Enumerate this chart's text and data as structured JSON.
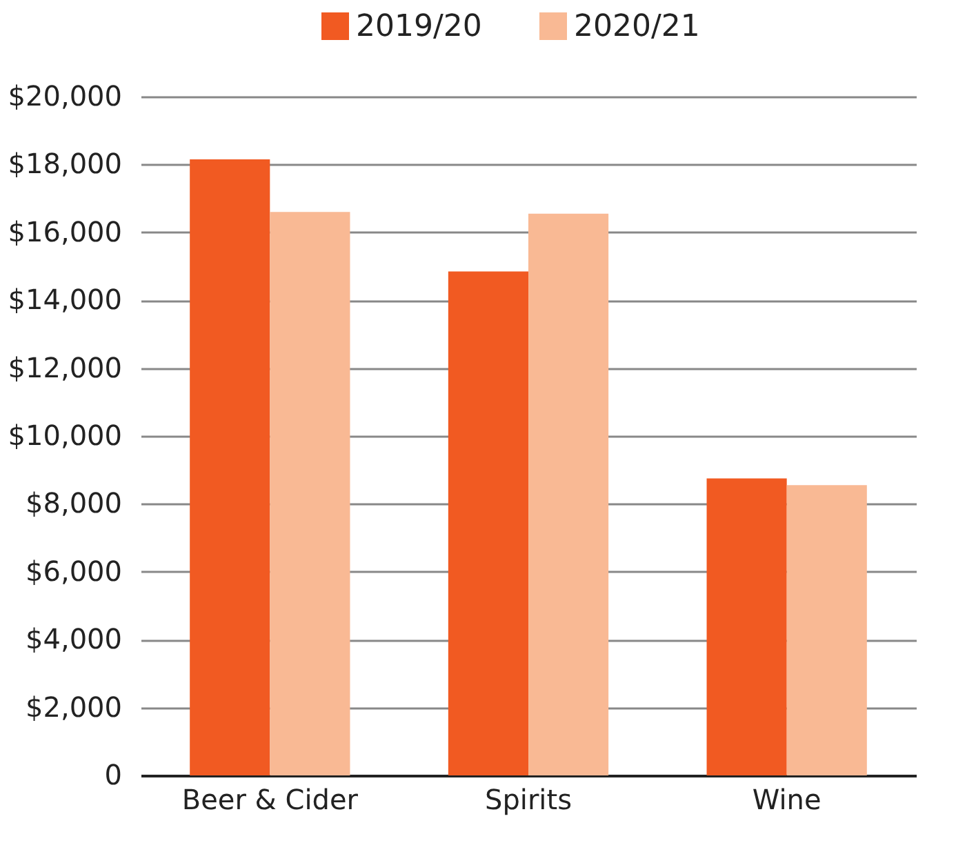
{
  "chart_data": {
    "type": "bar",
    "categories": [
      "Beer & Cider",
      "Spirits",
      "Wine"
    ],
    "series": [
      {
        "name": "2019/20",
        "color": "#f15a22",
        "values": [
          18150,
          14850,
          8750
        ]
      },
      {
        "name": "2020/21",
        "color": "#f9b994",
        "values": [
          16600,
          16550,
          8550
        ]
      }
    ],
    "ylim": [
      0,
      20000
    ],
    "yticks": [
      0,
      {
        "value": 2000,
        "label": "$2,000"
      },
      {
        "value": 4000,
        "label": "$4,000"
      },
      {
        "value": 6000,
        "label": "$6,000"
      },
      {
        "value": 8000,
        "label": "$8,000"
      },
      {
        "value": 10000,
        "label": "$10,000"
      },
      {
        "value": 12000,
        "label": "$12,000"
      },
      {
        "value": 14000,
        "label": "$14,000"
      },
      {
        "value": 16000,
        "label": "$16,000"
      },
      {
        "value": 18000,
        "label": "$18,000"
      },
      {
        "value": 20000,
        "label": "$20,000"
      }
    ],
    "grid": "y",
    "legend": "top"
  }
}
